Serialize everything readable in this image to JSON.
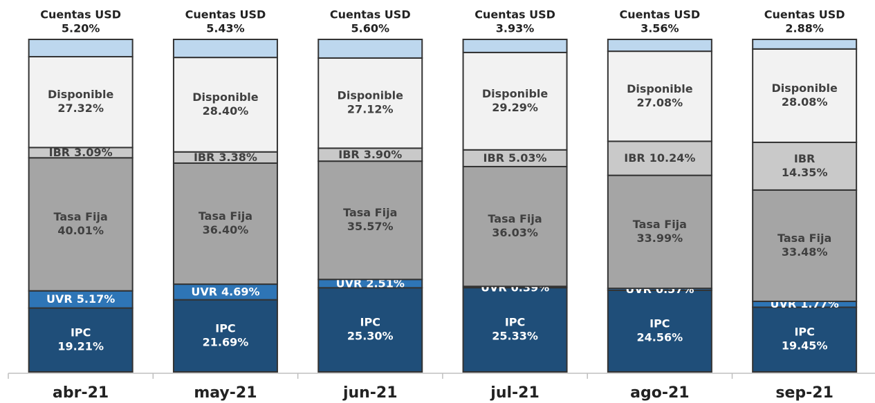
{
  "chart_data": {
    "type": "stacked_bar",
    "categories": [
      "abr-21",
      "may-21",
      "jun-21",
      "jul-21",
      "ago-21",
      "sep-21"
    ],
    "series": [
      {
        "name": "IPC",
        "color": "#1f4e79",
        "values": [
          19.21,
          21.69,
          25.3,
          25.33,
          24.56,
          19.45
        ],
        "value_labels": [
          "19.21%",
          "21.69%",
          "25.30%",
          "25.33%",
          "24.56%",
          "19.45%"
        ]
      },
      {
        "name": "UVR",
        "color": "#2e75b6",
        "values": [
          5.17,
          4.69,
          2.51,
          0.39,
          0.57,
          1.77
        ],
        "value_labels": [
          "5.17%",
          "4.69%",
          "2.51%",
          "0.39%",
          "0.57%",
          "1.77%"
        ]
      },
      {
        "name": "Tasa Fija",
        "color": "#a5a5a5",
        "values": [
          40.01,
          36.4,
          35.57,
          36.03,
          33.99,
          33.48
        ],
        "value_labels": [
          "40.01%",
          "36.40%",
          "35.57%",
          "36.03%",
          "33.99%",
          "33.48%"
        ]
      },
      {
        "name": "IBR",
        "color": "#c9c9c9",
        "values": [
          3.09,
          3.38,
          3.9,
          5.03,
          10.24,
          14.35
        ],
        "value_labels": [
          "3.09%",
          "3.38%",
          "3.90%",
          "5.03%",
          "10.24%",
          "14.35%"
        ]
      },
      {
        "name": "Disponible",
        "color": "#f2f2f2",
        "values": [
          27.32,
          28.4,
          27.12,
          29.29,
          27.08,
          28.08
        ],
        "value_labels": [
          "27.32%",
          "28.40%",
          "27.12%",
          "29.29%",
          "27.08%",
          "28.08%"
        ]
      },
      {
        "name": "Cuentas USD",
        "color": "#bdd7ee",
        "values": [
          5.2,
          5.43,
          5.6,
          3.93,
          3.56,
          2.88
        ],
        "value_labels": [
          "5.20%",
          "5.43%",
          "5.60%",
          "3.93%",
          "3.56%",
          "2.88%"
        ]
      }
    ]
  }
}
